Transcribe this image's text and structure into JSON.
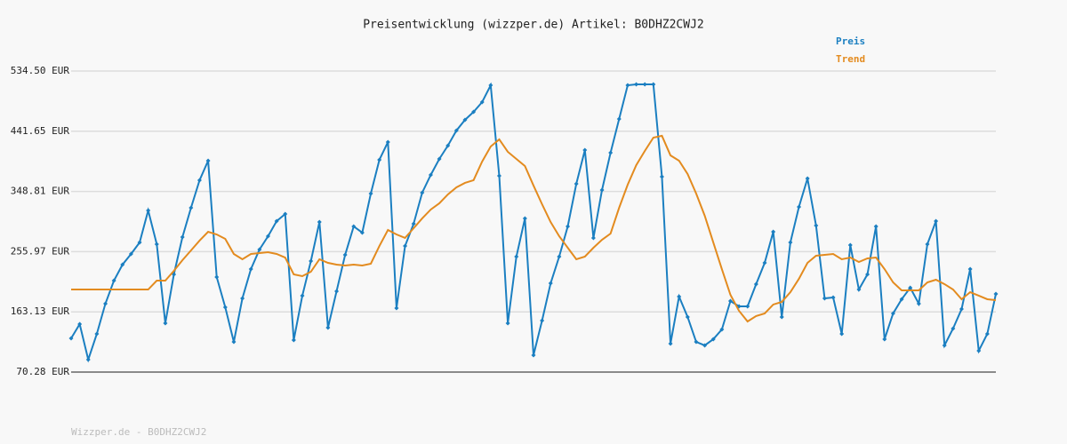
{
  "chart_data": {
    "type": "line",
    "title": "Preisentwicklung (wizzper.de) Artikel: B0DHZ2CWJ2",
    "footer": "Wizzper.de - B0DHZ2CWJ2",
    "ylim": [
      70.28,
      534.5
    ],
    "yticks": [
      {
        "value": 70.28,
        "label": "70.28 EUR"
      },
      {
        "value": 163.13,
        "label": "163.13 EUR"
      },
      {
        "value": 255.97,
        "label": "255.97 EUR"
      },
      {
        "value": 348.81,
        "label": "348.81 EUR"
      },
      {
        "value": 441.65,
        "label": "441.65 EUR"
      },
      {
        "value": 534.5,
        "label": "534.50 EUR"
      }
    ],
    "grid": true,
    "legend": "top-right",
    "series": [
      {
        "name": "Preis",
        "color": "#1b7fc1",
        "markers": true,
        "values": [
          122.3,
          144.2,
          89.5,
          129.2,
          175.7,
          211.3,
          236.0,
          252.4,
          270.2,
          319.5,
          267.5,
          145.6,
          220.9,
          278.4,
          323.6,
          366.1,
          396.2,
          216.8,
          170.2,
          116.8,
          183.9,
          229.1,
          259.3,
          279.8,
          303.1,
          314.0,
          119.6,
          188.0,
          241.5,
          301.7,
          138.8,
          194.9,
          251.0,
          294.9,
          285.3,
          345.5,
          397.6,
          425.0,
          168.9,
          264.7,
          299.0,
          346.9,
          374.3,
          398.9,
          419.5,
          442.8,
          459.2,
          471.5,
          486.6,
          512.6,
          372.9,
          145.6,
          248.3,
          307.2,
          96.3,
          149.7,
          207.2,
          248.3,
          294.9,
          360.6,
          412.6,
          277.1,
          351.0,
          408.5,
          460.6,
          512.6,
          514.0,
          514.0,
          514.0,
          371.5,
          114.1,
          186.7,
          155.2,
          116.8,
          111.4,
          121.0,
          136.0,
          179.8,
          171.6,
          171.6,
          205.9,
          238.7,
          286.6,
          155.2,
          270.2,
          325.0,
          368.8,
          296.2,
          183.9,
          185.3,
          129.2,
          266.1,
          197.6,
          220.9,
          294.9,
          121.0,
          160.7,
          182.6,
          200.4,
          175.7,
          267.5,
          303.1,
          111.4,
          137.4,
          167.5,
          229.1,
          103.1,
          129.2,
          190.8
        ]
      },
      {
        "name": "Trend",
        "color": "#e38b1f",
        "markers": false,
        "values": [
          197.6,
          197.6,
          197.6,
          197.6,
          197.6,
          197.6,
          197.6,
          197.6,
          197.6,
          197.6,
          211.3,
          211.3,
          226.4,
          242.8,
          257.9,
          273.0,
          286.6,
          282.5,
          275.7,
          252.4,
          244.2,
          252.4,
          253.8,
          255.2,
          252.4,
          246.9,
          220.9,
          218.2,
          225.0,
          244.2,
          238.7,
          236.0,
          234.6,
          236.0,
          234.6,
          237.4,
          264.7,
          289.4,
          282.5,
          277.1,
          292.1,
          307.2,
          320.9,
          330.5,
          344.2,
          355.1,
          362.0,
          366.1,
          394.8,
          418.1,
          429.1,
          409.9,
          398.9,
          388.0,
          357.9,
          329.1,
          301.7,
          279.8,
          262.0,
          244.2,
          248.3,
          262.0,
          274.3,
          283.9,
          323.6,
          359.2,
          389.4,
          411.3,
          431.8,
          434.6,
          404.4,
          396.2,
          375.7,
          345.5,
          311.3,
          270.2,
          229.1,
          189.4,
          164.8,
          148.3,
          156.6,
          160.7,
          174.4,
          178.5,
          193.5,
          214.1,
          238.7,
          249.7,
          251.0,
          252.4,
          244.2,
          246.9,
          240.1,
          245.6,
          246.9,
          229.1,
          208.6,
          196.3,
          196.3,
          196.3,
          208.6,
          212.7,
          205.9,
          197.6,
          182.6,
          193.5,
          188.1,
          182.6,
          181.2
        ]
      }
    ]
  }
}
